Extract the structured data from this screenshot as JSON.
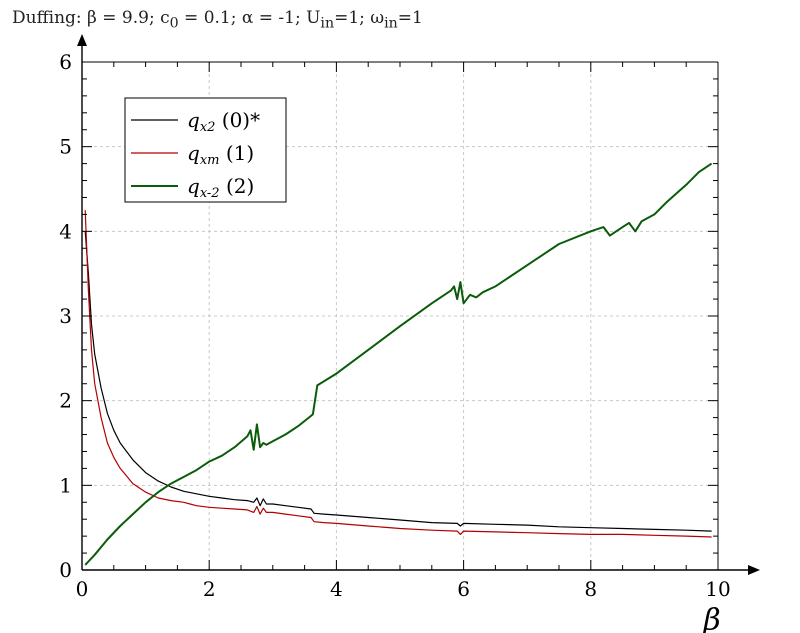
{
  "title_parts": {
    "t1": "Duffing: β = 9.9; c",
    "s1": "0",
    "t2": " = 0.1; α = -1; U",
    "s2": "in",
    "t3": "=1; ω",
    "s3": "in",
    "t4": "=1"
  },
  "chart_data": {
    "type": "line",
    "title": "Duffing: β = 9.9; c0 = 0.1; α = -1; Uin=1; ωin=1",
    "xlabel": "β",
    "ylabel": "",
    "xlim": [
      0,
      10
    ],
    "ylim": [
      0,
      6
    ],
    "xticks": [
      0,
      2,
      4,
      6,
      8,
      10
    ],
    "yticks": [
      0,
      1,
      2,
      3,
      4,
      5,
      6
    ],
    "grid": true,
    "legend_position": "top-left",
    "series": [
      {
        "name": "qx2 (0)*",
        "label_main": "q",
        "label_sub": "x2",
        "label_suffix": " (0)*",
        "color": "#000000",
        "x": [
          0.05,
          0.1,
          0.15,
          0.2,
          0.3,
          0.4,
          0.5,
          0.6,
          0.8,
          1.0,
          1.2,
          1.4,
          1.6,
          1.8,
          2.0,
          2.2,
          2.4,
          2.6,
          2.7,
          2.75,
          2.8,
          2.85,
          2.9,
          3.0,
          3.2,
          3.4,
          3.6,
          3.65,
          3.8,
          4.0,
          4.5,
          5.0,
          5.5,
          5.9,
          5.95,
          6.0,
          6.5,
          7.0,
          7.5,
          8.0,
          8.5,
          9.0,
          9.5,
          9.9
        ],
        "y": [
          4.0,
          3.5,
          2.9,
          2.55,
          2.15,
          1.85,
          1.65,
          1.5,
          1.3,
          1.15,
          1.05,
          0.98,
          0.93,
          0.9,
          0.87,
          0.85,
          0.83,
          0.82,
          0.8,
          0.85,
          0.76,
          0.84,
          0.78,
          0.78,
          0.76,
          0.74,
          0.72,
          0.67,
          0.66,
          0.65,
          0.62,
          0.59,
          0.56,
          0.55,
          0.52,
          0.55,
          0.54,
          0.53,
          0.51,
          0.5,
          0.49,
          0.48,
          0.47,
          0.46
        ]
      },
      {
        "name": "qxm (1)",
        "label_main": "q",
        "label_sub": "xm",
        "label_suffix": " (1)",
        "color": "#b30000",
        "x": [
          0.05,
          0.1,
          0.15,
          0.2,
          0.3,
          0.4,
          0.5,
          0.6,
          0.8,
          1.0,
          1.2,
          1.4,
          1.6,
          1.7,
          1.8,
          2.0,
          2.2,
          2.4,
          2.6,
          2.7,
          2.75,
          2.8,
          2.85,
          2.9,
          3.0,
          3.2,
          3.4,
          3.6,
          3.65,
          3.8,
          4.0,
          4.5,
          5.0,
          5.5,
          5.9,
          5.95,
          6.0,
          6.5,
          7.0,
          7.5,
          8.0,
          8.5,
          9.0,
          9.5,
          9.9
        ],
        "y": [
          4.25,
          3.3,
          2.6,
          2.2,
          1.8,
          1.5,
          1.33,
          1.2,
          1.02,
          0.92,
          0.85,
          0.82,
          0.8,
          0.78,
          0.76,
          0.74,
          0.73,
          0.72,
          0.71,
          0.68,
          0.75,
          0.66,
          0.73,
          0.68,
          0.68,
          0.66,
          0.64,
          0.62,
          0.57,
          0.56,
          0.55,
          0.52,
          0.49,
          0.47,
          0.46,
          0.42,
          0.46,
          0.45,
          0.44,
          0.43,
          0.42,
          0.42,
          0.41,
          0.4,
          0.39
        ]
      },
      {
        "name": "qx-2 (2)",
        "label_main": "q",
        "label_sub": "x-2",
        "label_suffix": " (2)",
        "color": "#0a5c0a",
        "x": [
          0.05,
          0.1,
          0.2,
          0.4,
          0.6,
          0.8,
          1.0,
          1.2,
          1.4,
          1.6,
          1.8,
          2.0,
          2.2,
          2.4,
          2.6,
          2.65,
          2.7,
          2.75,
          2.8,
          2.85,
          2.9,
          3.0,
          3.2,
          3.4,
          3.6,
          3.63,
          3.7,
          4.0,
          4.5,
          5.0,
          5.5,
          5.7,
          5.8,
          5.85,
          5.9,
          5.95,
          6.0,
          6.1,
          6.2,
          6.3,
          6.5,
          7.0,
          7.5,
          8.0,
          8.2,
          8.3,
          8.5,
          8.6,
          8.7,
          8.8,
          9.0,
          9.2,
          9.5,
          9.7,
          9.9
        ],
        "y": [
          0.06,
          0.1,
          0.18,
          0.36,
          0.52,
          0.66,
          0.8,
          0.92,
          1.02,
          1.1,
          1.18,
          1.28,
          1.35,
          1.45,
          1.58,
          1.65,
          1.42,
          1.72,
          1.45,
          1.5,
          1.48,
          1.52,
          1.6,
          1.7,
          1.82,
          1.84,
          2.18,
          2.32,
          2.6,
          2.88,
          3.15,
          3.25,
          3.3,
          3.35,
          3.2,
          3.4,
          3.15,
          3.25,
          3.22,
          3.28,
          3.35,
          3.6,
          3.85,
          4.0,
          4.05,
          3.95,
          4.05,
          4.1,
          4.0,
          4.12,
          4.2,
          4.35,
          4.55,
          4.7,
          4.8
        ]
      }
    ]
  }
}
